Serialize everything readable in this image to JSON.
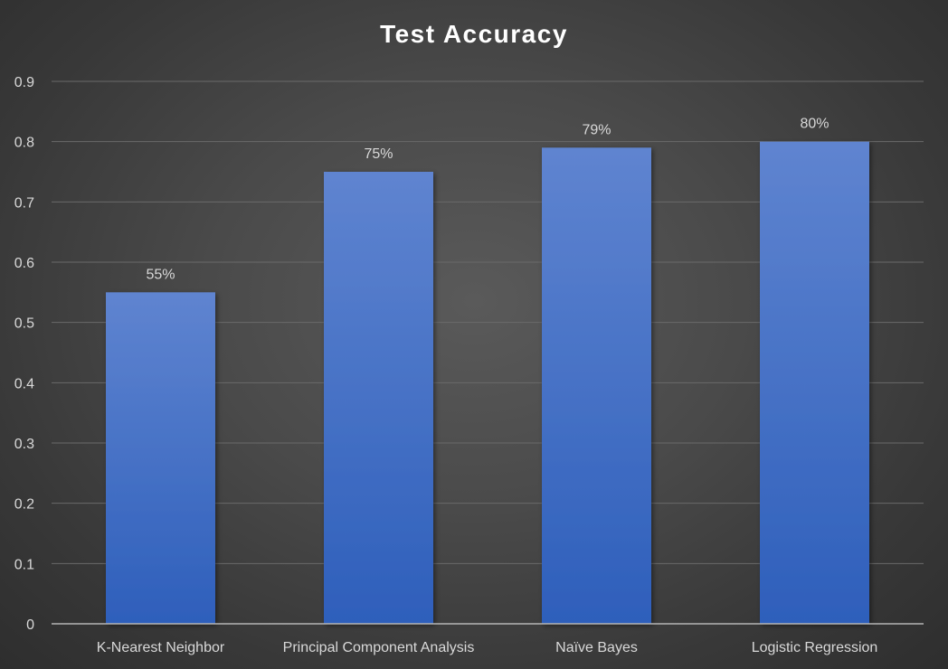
{
  "colors": {
    "bar_top": "#5f84d0",
    "bar_bottom": "#2e5fbb",
    "gridline": "#6a6a6a",
    "axis_line": "#b5b5b5",
    "text": "#d9d9d9",
    "title": "#ffffff"
  },
  "chart_data": {
    "type": "bar",
    "title": "Test Accuracy",
    "xlabel": "",
    "ylabel": "",
    "categories": [
      "K-Nearest Neighbor",
      "Principal Component Analysis",
      "Naïve Bayes",
      "Logistic Regression"
    ],
    "values": [
      0.55,
      0.75,
      0.79,
      0.8
    ],
    "data_labels": [
      "55%",
      "75%",
      "79%",
      "80%"
    ],
    "ylim": [
      0,
      0.9
    ],
    "y_ticks": [
      "0",
      "0.1",
      "0.2",
      "0.3",
      "0.4",
      "0.5",
      "0.6",
      "0.7",
      "0.8",
      "0.9"
    ],
    "grid": true,
    "legend": "none"
  }
}
